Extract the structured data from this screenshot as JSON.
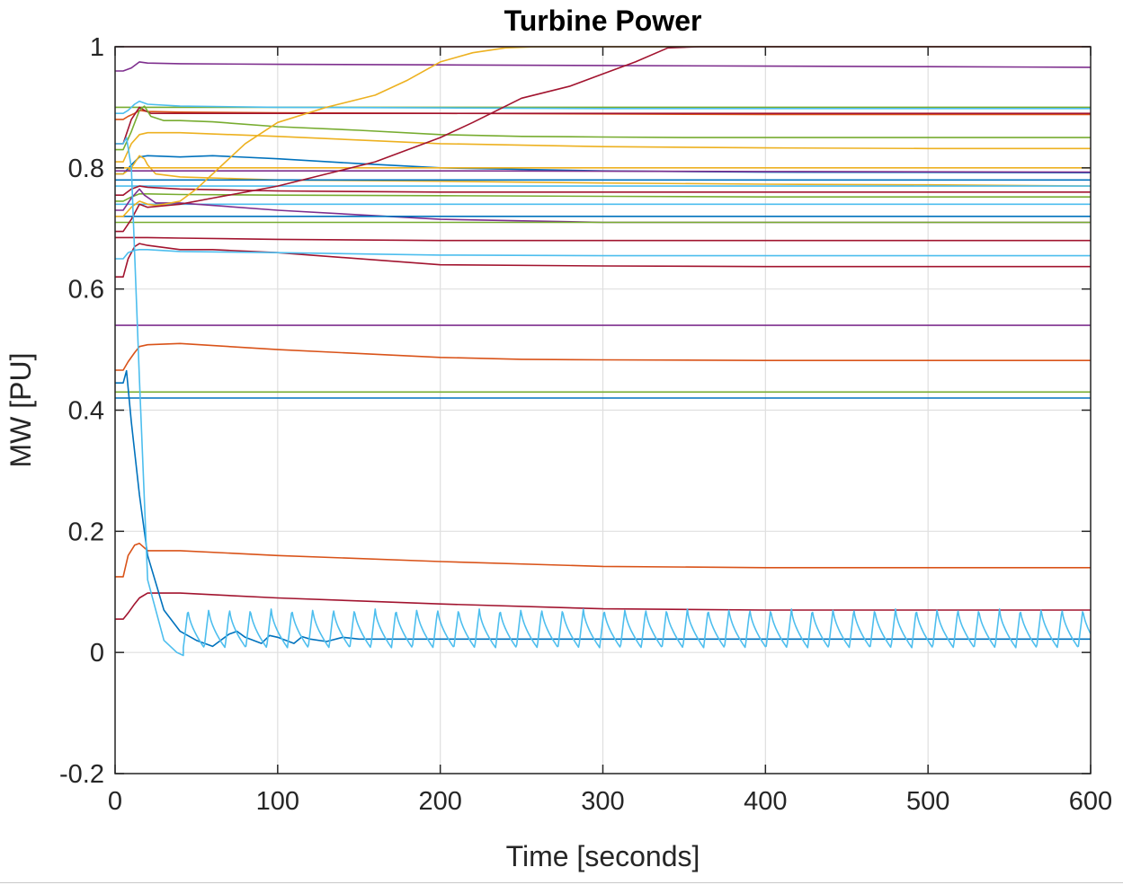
{
  "chart_data": {
    "type": "line",
    "title": "Turbine Power",
    "xlabel": "Time [seconds]",
    "ylabel": "MW [PU]",
    "xlim": [
      0,
      600
    ],
    "ylim": [
      -0.2,
      1
    ],
    "xticks": [
      0,
      100,
      200,
      300,
      400,
      500,
      600
    ],
    "yticks": [
      -0.2,
      0,
      0.2,
      0.4,
      0.6,
      0.8,
      1
    ],
    "xtick_labels": [
      "0",
      "100",
      "200",
      "300",
      "400",
      "500",
      "600"
    ],
    "ytick_labels": [
      "-0.2",
      "0",
      "0.2",
      "0.4",
      "0.6",
      "0.8",
      "1"
    ],
    "grid": true,
    "series": [
      {
        "color": "#A2142F",
        "x": [
          0,
          5,
          15,
          30,
          60,
          600
        ],
        "y": [
          1.0,
          1.0,
          1.0,
          1.0,
          1.0,
          1.0
        ]
      },
      {
        "color": "#7E2F8E",
        "x": [
          0,
          5,
          10,
          15,
          20,
          40,
          100,
          200,
          300,
          400,
          500,
          600
        ],
        "y": [
          0.96,
          0.96,
          0.965,
          0.975,
          0.973,
          0.972,
          0.971,
          0.97,
          0.969,
          0.968,
          0.967,
          0.966
        ]
      },
      {
        "color": "#77AC30",
        "x": [
          0,
          5,
          600
        ],
        "y": [
          0.9,
          0.9,
          0.9
        ]
      },
      {
        "color": "#4DBEEE",
        "x": [
          0,
          5,
          8,
          12,
          15,
          20,
          40,
          100,
          200,
          300,
          400,
          500,
          600
        ],
        "y": [
          0.89,
          0.89,
          0.895,
          0.905,
          0.91,
          0.905,
          0.902,
          0.9,
          0.899,
          0.898,
          0.898,
          0.898,
          0.898
        ]
      },
      {
        "color": "#D95319",
        "x": [
          0,
          5,
          8,
          12,
          15,
          20,
          40,
          100,
          200,
          300,
          400,
          500,
          600
        ],
        "y": [
          0.88,
          0.88,
          0.885,
          0.89,
          0.895,
          0.893,
          0.892,
          0.891,
          0.89,
          0.889,
          0.888,
          0.888,
          0.888
        ]
      },
      {
        "color": "#A2142F",
        "x": [
          0,
          5,
          10,
          15,
          18,
          22,
          40,
          100,
          200,
          300,
          600
        ],
        "y": [
          0.84,
          0.84,
          0.88,
          0.9,
          0.895,
          0.89,
          0.89,
          0.89,
          0.89,
          0.89,
          0.89
        ]
      },
      {
        "color": "#77AC30",
        "x": [
          0,
          5,
          10,
          15,
          18,
          22,
          30,
          40,
          60,
          100,
          150,
          200,
          250,
          300,
          350,
          400,
          500,
          600
        ],
        "y": [
          0.83,
          0.83,
          0.86,
          0.895,
          0.902,
          0.885,
          0.878,
          0.878,
          0.876,
          0.868,
          0.862,
          0.855,
          0.852,
          0.851,
          0.85,
          0.85,
          0.85,
          0.85
        ]
      },
      {
        "color": "#EDB120",
        "x": [
          0,
          5,
          10,
          15,
          20,
          40,
          100,
          200,
          300,
          400,
          500,
          600
        ],
        "y": [
          0.81,
          0.81,
          0.84,
          0.855,
          0.858,
          0.858,
          0.852,
          0.84,
          0.835,
          0.833,
          0.832,
          0.832
        ]
      },
      {
        "color": "#0072BD",
        "x": [
          0,
          5,
          10,
          15,
          20,
          40,
          60,
          100,
          150,
          200,
          300,
          400,
          600
        ],
        "y": [
          0.79,
          0.79,
          0.805,
          0.818,
          0.82,
          0.818,
          0.82,
          0.815,
          0.807,
          0.8,
          0.795,
          0.793,
          0.792
        ]
      },
      {
        "color": "#EDB120",
        "x": [
          0,
          5,
          10,
          15,
          18,
          20,
          25,
          40,
          100,
          200,
          300,
          400,
          500,
          600
        ],
        "y": [
          0.79,
          0.79,
          0.8,
          0.82,
          0.815,
          0.805,
          0.79,
          0.785,
          0.78,
          0.778,
          0.775,
          0.773,
          0.772,
          0.77
        ]
      },
      {
        "color": "#EDB120",
        "x": [
          0,
          5,
          600
        ],
        "y": [
          0.8,
          0.8,
          0.8
        ]
      },
      {
        "color": "#7E2F8E",
        "x": [
          0,
          5,
          15,
          40,
          100,
          200,
          400,
          600
        ],
        "y": [
          0.795,
          0.795,
          0.795,
          0.795,
          0.795,
          0.795,
          0.794,
          0.793
        ]
      },
      {
        "color": "#0072BD",
        "x": [
          0,
          5,
          600
        ],
        "y": [
          0.78,
          0.78,
          0.78
        ]
      },
      {
        "color": "#4DBEEE",
        "x": [
          0,
          5,
          600
        ],
        "y": [
          0.77,
          0.77,
          0.77
        ]
      },
      {
        "color": "#A2142F",
        "x": [
          0,
          5,
          10,
          15,
          20,
          40,
          100,
          200,
          300,
          400,
          600
        ],
        "y": [
          0.755,
          0.755,
          0.765,
          0.77,
          0.768,
          0.765,
          0.762,
          0.76,
          0.76,
          0.76,
          0.76
        ]
      },
      {
        "color": "#77AC30",
        "x": [
          0,
          5,
          10,
          15,
          20,
          40,
          100,
          200,
          300,
          400,
          600
        ],
        "y": [
          0.745,
          0.745,
          0.752,
          0.757,
          0.757,
          0.756,
          0.755,
          0.754,
          0.753,
          0.752,
          0.752
        ]
      },
      {
        "color": "#4DBEEE",
        "x": [
          0,
          5,
          600
        ],
        "y": [
          0.74,
          0.74,
          0.74
        ]
      },
      {
        "color": "#7E2F8E",
        "x": [
          0,
          5,
          10,
          15,
          18,
          25,
          40,
          100,
          200,
          300,
          400,
          600
        ],
        "y": [
          0.73,
          0.73,
          0.75,
          0.765,
          0.755,
          0.742,
          0.742,
          0.73,
          0.715,
          0.71,
          0.71,
          0.71
        ]
      },
      {
        "color": "#0072BD",
        "x": [
          0,
          5,
          600
        ],
        "y": [
          0.72,
          0.72,
          0.72
        ]
      },
      {
        "color": "#EDB120",
        "x": [
          0,
          5,
          10,
          15,
          20,
          25,
          30,
          40,
          50,
          80,
          100,
          130,
          160,
          180,
          200,
          220,
          240,
          260,
          280,
          300,
          600
        ],
        "y": [
          0.72,
          0.72,
          0.735,
          0.745,
          0.74,
          0.738,
          0.74,
          0.745,
          0.765,
          0.84,
          0.875,
          0.9,
          0.92,
          0.945,
          0.975,
          0.99,
          0.998,
          1.0,
          1.0,
          1.0,
          1.0
        ]
      },
      {
        "color": "#77AC30",
        "x": [
          0,
          5,
          600
        ],
        "y": [
          0.71,
          0.71,
          0.71
        ]
      },
      {
        "color": "#A2142F",
        "x": [
          0,
          5,
          10,
          15,
          20,
          40,
          60,
          100,
          130,
          160,
          200,
          220,
          250,
          280,
          300,
          320,
          340,
          360,
          600
        ],
        "y": [
          0.695,
          0.695,
          0.715,
          0.74,
          0.735,
          0.74,
          0.75,
          0.77,
          0.79,
          0.81,
          0.85,
          0.875,
          0.915,
          0.935,
          0.955,
          0.975,
          0.998,
          1.0,
          1.0
        ]
      },
      {
        "color": "#A2142F",
        "x": [
          0,
          5,
          10,
          15,
          20,
          40,
          100,
          200,
          300,
          600
        ],
        "y": [
          0.685,
          0.685,
          0.685,
          0.685,
          0.685,
          0.684,
          0.682,
          0.68,
          0.68,
          0.68
        ]
      },
      {
        "color": "#A2142F",
        "x": [
          0,
          5,
          8,
          12,
          15,
          20,
          40,
          60,
          100,
          200,
          300,
          400,
          600
        ],
        "y": [
          0.62,
          0.62,
          0.65,
          0.67,
          0.675,
          0.672,
          0.665,
          0.665,
          0.66,
          0.64,
          0.638,
          0.637,
          0.637
        ]
      },
      {
        "color": "#4DBEEE",
        "x": [
          0,
          5,
          8,
          12,
          15,
          20,
          40,
          100,
          200,
          300,
          400,
          600
        ],
        "y": [
          0.65,
          0.65,
          0.66,
          0.664,
          0.665,
          0.665,
          0.662,
          0.66,
          0.656,
          0.655,
          0.655,
          0.655
        ]
      },
      {
        "color": "#7E2F8E",
        "x": [
          0,
          5,
          600
        ],
        "y": [
          0.54,
          0.54,
          0.54
        ]
      },
      {
        "color": "#D95319",
        "x": [
          0,
          5,
          8,
          12,
          15,
          20,
          40,
          100,
          200,
          250,
          300,
          400,
          600
        ],
        "y": [
          0.466,
          0.466,
          0.48,
          0.495,
          0.505,
          0.508,
          0.51,
          0.5,
          0.487,
          0.484,
          0.483,
          0.482,
          0.482
        ]
      },
      {
        "color": "#77AC30",
        "x": [
          0,
          5,
          600
        ],
        "y": [
          0.43,
          0.43,
          0.43
        ]
      },
      {
        "color": "#0072BD",
        "x": [
          0,
          5,
          600
        ],
        "y": [
          0.42,
          0.42,
          0.42
        ]
      },
      {
        "color": "#D95319",
        "x": [
          0,
          5,
          8,
          12,
          15,
          20,
          40,
          100,
          200,
          300,
          400,
          600
        ],
        "y": [
          0.125,
          0.125,
          0.16,
          0.177,
          0.18,
          0.168,
          0.168,
          0.16,
          0.15,
          0.142,
          0.14,
          0.14
        ]
      },
      {
        "color": "#A2142F",
        "x": [
          0,
          5,
          8,
          12,
          15,
          20,
          40,
          100,
          200,
          300,
          400,
          600
        ],
        "y": [
          0.055,
          0.055,
          0.065,
          0.08,
          0.09,
          0.098,
          0.098,
          0.09,
          0.08,
          0.072,
          0.07,
          0.07
        ]
      },
      {
        "color": "#0072BD",
        "x": [
          0,
          5,
          7,
          10,
          15,
          20,
          30,
          40,
          50,
          60,
          70,
          75,
          80,
          90,
          95,
          100,
          110,
          115,
          120,
          130,
          140,
          150,
          200,
          300,
          400,
          500,
          600
        ],
        "y": [
          0.445,
          0.445,
          0.465,
          0.38,
          0.26,
          0.16,
          0.07,
          0.035,
          0.02,
          0.01,
          0.03,
          0.035,
          0.025,
          0.015,
          0.028,
          0.025,
          0.015,
          0.026,
          0.022,
          0.018,
          0.025,
          0.022,
          0.022,
          0.022,
          0.022,
          0.022,
          0.022
        ]
      },
      {
        "color": "#4DBEEE",
        "x": [
          0,
          5,
          7,
          10,
          15,
          20,
          30,
          38,
          42
        ],
        "y": [
          0.84,
          0.84,
          0.85,
          0.8,
          0.45,
          0.12,
          0.02,
          0.0,
          -0.005
        ],
        "oscillation": {
          "start": 42,
          "end": 600,
          "period": 12.8,
          "min": 0.008,
          "max": 0.072
        }
      }
    ]
  }
}
